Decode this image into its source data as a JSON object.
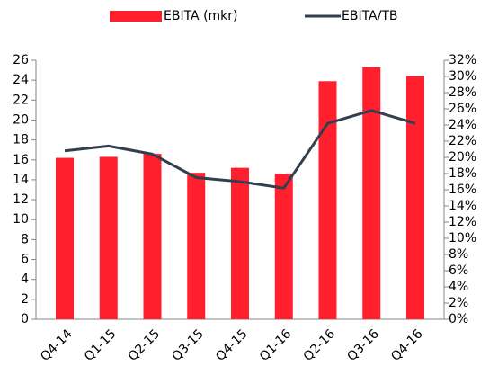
{
  "chart_data": {
    "type": "bar",
    "categories": [
      "Q4-14",
      "Q1-15",
      "Q2-15",
      "Q3-15",
      "Q4-15",
      "Q1-16",
      "Q2-16",
      "Q3-16",
      "Q4-16"
    ],
    "series": [
      {
        "name": "EBITA (mkr)",
        "type": "bar",
        "color": "#ff1f2d",
        "values": [
          16.2,
          16.3,
          16.6,
          14.7,
          15.2,
          14.6,
          23.9,
          25.3,
          24.4
        ]
      },
      {
        "name": "EBITA/TB",
        "type": "line",
        "axis": "y2",
        "color": "#333f4f",
        "values": [
          20.8,
          21.4,
          20.4,
          17.5,
          17.0,
          16.2,
          24.2,
          25.8,
          24.2
        ]
      }
    ],
    "ylim": [
      0,
      26
    ],
    "yticks": [
      0,
      2,
      4,
      6,
      8,
      10,
      12,
      14,
      16,
      18,
      20,
      22,
      24,
      26
    ],
    "y2lim": [
      0,
      32
    ],
    "y2ticks": [
      {
        "value": 0,
        "label": "0%"
      },
      {
        "value": 2,
        "label": "2%"
      },
      {
        "value": 4,
        "label": "4%"
      },
      {
        "value": 6,
        "label": "6%"
      },
      {
        "value": 8,
        "label": "8%"
      },
      {
        "value": 10,
        "label": "10%"
      },
      {
        "value": 12,
        "label": "12%"
      },
      {
        "value": 14,
        "label": "14%"
      },
      {
        "value": 16,
        "label": "16%"
      },
      {
        "value": 18,
        "label": "18%"
      },
      {
        "value": 20,
        "label": "20%"
      },
      {
        "value": 22,
        "label": "22%"
      },
      {
        "value": 24,
        "label": "24%"
      },
      {
        "value": 26,
        "label": "26%"
      },
      {
        "value": 28,
        "label": "28%"
      },
      {
        "value": 30,
        "label": "30%"
      },
      {
        "value": 32,
        "label": "32%"
      }
    ],
    "legend": "top"
  }
}
